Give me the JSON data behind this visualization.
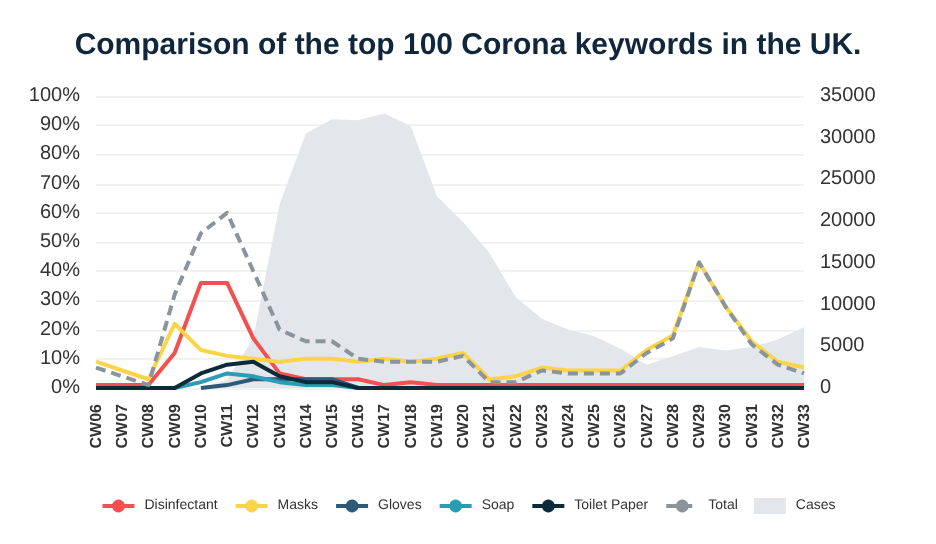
{
  "chart_data": {
    "type": "line",
    "title": "Comparison of the top 100 Corona keywords in the UK.",
    "categories": [
      "CW06",
      "CW07",
      "CW08",
      "CW09",
      "CW10",
      "CW11",
      "CW12",
      "CW13",
      "CW14",
      "CW15",
      "CW16",
      "CW17",
      "CW18",
      "CW19",
      "CW20",
      "CW21",
      "CW22",
      "CW23",
      "CW24",
      "CW25",
      "CW26",
      "CW27",
      "CW28",
      "CW29",
      "CW30",
      "CW31",
      "CW32",
      "CW33"
    ],
    "series": [
      {
        "name": "Disinfectant",
        "color": "#f4504f",
        "values": [
          1,
          1,
          1,
          12,
          36,
          36,
          17,
          5,
          3,
          3,
          3,
          1,
          2,
          1,
          1,
          1,
          1,
          1,
          1,
          1,
          1,
          1,
          1,
          1,
          1,
          1,
          1,
          1
        ]
      },
      {
        "name": "Masks",
        "color": "#fcd447",
        "values": [
          9,
          6,
          3,
          22,
          13,
          11,
          10,
          9,
          10,
          10,
          9,
          10,
          9,
          10,
          12,
          3,
          4,
          7,
          6,
          6,
          6,
          13,
          18,
          43,
          28,
          16,
          9,
          7
        ]
      },
      {
        "name": "Gloves",
        "color": "#2e5a7a",
        "values": [
          null,
          null,
          null,
          null,
          0,
          1,
          3,
          3,
          3,
          3,
          0,
          null,
          null,
          null,
          null,
          null,
          null,
          null,
          null,
          null,
          null,
          null,
          null,
          null,
          null,
          null,
          null,
          null
        ]
      },
      {
        "name": "Soap",
        "color": "#2a9db5",
        "values": [
          null,
          null,
          null,
          0,
          2,
          5,
          4,
          2,
          1,
          1,
          0,
          null,
          null,
          null,
          null,
          null,
          null,
          null,
          null,
          null,
          null,
          null,
          null,
          null,
          null,
          null,
          null,
          null
        ]
      },
      {
        "name": "Toilet Paper",
        "color": "#0d2a3a",
        "values": [
          0,
          0,
          0,
          0,
          5,
          8,
          9,
          4,
          2,
          2,
          0,
          0,
          0,
          0,
          0,
          0,
          0,
          0,
          0,
          0,
          0,
          0,
          0,
          0,
          0,
          0,
          0,
          0
        ]
      },
      {
        "name": "Total",
        "color": "#8a949c",
        "line_style": "dashed",
        "values": [
          7,
          4,
          1,
          32,
          53,
          60,
          40,
          20,
          16,
          16,
          10,
          9,
          9,
          9,
          11,
          2,
          2,
          6,
          5,
          5,
          5,
          12,
          17,
          43,
          28,
          15,
          8,
          5
        ]
      },
      {
        "name": "Cases",
        "type": "area",
        "axis": "y2",
        "color": "#e3e6ea",
        "values": [
          0,
          0,
          0,
          0,
          0,
          1000,
          6000,
          22000,
          30500,
          32200,
          32100,
          32900,
          31400,
          23000,
          19900,
          16200,
          10900,
          8300,
          7000,
          6200,
          4700,
          2800,
          3800,
          4900,
          4500,
          4900,
          5800,
          7300
        ]
      }
    ],
    "ylim": [
      0,
      100
    ],
    "yticks": [
      {
        "value": 0,
        "label": "0%"
      },
      {
        "value": 10,
        "label": "10%"
      },
      {
        "value": 20,
        "label": "20%"
      },
      {
        "value": 30,
        "label": "30%"
      },
      {
        "value": 40,
        "label": "40%"
      },
      {
        "value": 50,
        "label": "50%"
      },
      {
        "value": 60,
        "label": "60%"
      },
      {
        "value": 70,
        "label": "70%"
      },
      {
        "value": 80,
        "label": "80%"
      },
      {
        "value": 90,
        "label": "90%"
      },
      {
        "value": 100,
        "label": "100%"
      }
    ],
    "y2lim": [
      0,
      35000
    ],
    "y2ticks": [
      0,
      5000,
      10000,
      15000,
      20000,
      25000,
      30000,
      35000
    ],
    "grid": "y",
    "legend": "bottom",
    "marker": "none",
    "line_style": "solid"
  }
}
